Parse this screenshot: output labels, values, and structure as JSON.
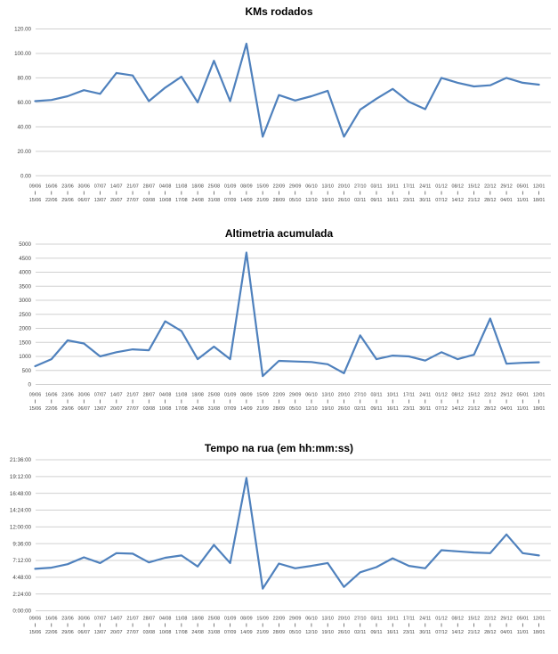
{
  "page": {
    "background": "#ffffff"
  },
  "chart_data": [
    {
      "type": "line",
      "title": "KMs rodados",
      "xlabel": "",
      "ylabel": "",
      "ylim": [
        0,
        120
      ],
      "grid": true,
      "legend": "none",
      "line_color": "#4F81BD",
      "y_ticks": [
        "0.00",
        "20.00",
        "40.00",
        "60.00",
        "80.00",
        "100.00",
        "120.00"
      ],
      "x_labels_top": [
        "09/06",
        "16/06",
        "23/06",
        "30/06",
        "07/07",
        "14/07",
        "21/07",
        "28/07",
        "04/08",
        "11/08",
        "18/08",
        "25/08",
        "01/09",
        "08/09",
        "15/09",
        "22/09",
        "29/09",
        "06/10",
        "13/10",
        "20/10",
        "27/10",
        "03/11",
        "10/11",
        "17/11",
        "24/11",
        "01/12",
        "08/12",
        "15/12",
        "22/12",
        "29/12",
        "05/01",
        "12/01"
      ],
      "x_labels_bottom": [
        "15/06",
        "22/06",
        "29/06",
        "06/07",
        "13/07",
        "20/07",
        "27/07",
        "03/08",
        "10/08",
        "17/08",
        "24/08",
        "31/08",
        "07/09",
        "14/09",
        "21/09",
        "28/09",
        "05/10",
        "12/10",
        "19/10",
        "26/10",
        "02/11",
        "09/11",
        "16/11",
        "23/11",
        "30/11",
        "07/12",
        "14/12",
        "21/12",
        "28/12",
        "04/01",
        "11/01",
        "18/01"
      ],
      "values": [
        61,
        62,
        65,
        70,
        67,
        84,
        82,
        61,
        72,
        81,
        60,
        94,
        61,
        108,
        32,
        66,
        61.5,
        65,
        69.5,
        32,
        54,
        63,
        71,
        60.5,
        54.5,
        80,
        76,
        73,
        74,
        80,
        76,
        74.5
      ]
    },
    {
      "type": "line",
      "title": "Altimetria acumulada",
      "xlabel": "",
      "ylabel": "",
      "ylim": [
        0,
        5000
      ],
      "grid": true,
      "legend": "none",
      "line_color": "#4F81BD",
      "y_ticks": [
        "0",
        "500",
        "1000",
        "1500",
        "2000",
        "2500",
        "3000",
        "3500",
        "4000",
        "4500",
        "5000"
      ],
      "x_labels_top": [
        "09/06",
        "16/06",
        "23/06",
        "30/06",
        "07/07",
        "14/07",
        "21/07",
        "28/07",
        "04/08",
        "11/08",
        "18/08",
        "25/08",
        "01/09",
        "08/09",
        "15/09",
        "22/09",
        "29/09",
        "06/10",
        "13/10",
        "20/10",
        "27/10",
        "03/11",
        "10/11",
        "17/11",
        "24/11",
        "01/12",
        "08/12",
        "15/12",
        "22/12",
        "29/12",
        "05/01",
        "12/01"
      ],
      "x_labels_bottom": [
        "15/06",
        "22/06",
        "29/06",
        "06/07",
        "13/07",
        "20/07",
        "27/07",
        "03/08",
        "10/08",
        "17/08",
        "24/08",
        "31/08",
        "07/09",
        "14/09",
        "21/09",
        "28/09",
        "05/10",
        "12/10",
        "19/10",
        "26/10",
        "02/11",
        "09/11",
        "16/11",
        "23/11",
        "30/11",
        "07/12",
        "14/12",
        "21/12",
        "28/12",
        "04/01",
        "11/01",
        "18/01"
      ],
      "values": [
        650,
        900,
        1570,
        1460,
        1000,
        1150,
        1250,
        1220,
        2250,
        1900,
        900,
        1350,
        900,
        4700,
        300,
        840,
        820,
        800,
        720,
        400,
        1750,
        900,
        1030,
        1000,
        850,
        1150,
        900,
        1060,
        2350,
        740,
        770,
        790
      ]
    },
    {
      "type": "line",
      "title": "Tempo na rua (em hh:mm:ss)",
      "xlabel": "",
      "ylabel": "",
      "ylim_hours": [
        0,
        21.6
      ],
      "grid": true,
      "legend": "none",
      "line_color": "#4F81BD",
      "y_ticks": [
        "0:00:00",
        "2:24:00",
        "4:48:00",
        "7:12:00",
        "9:36:00",
        "12:00:00",
        "14:24:00",
        "16:48:00",
        "19:12:00",
        "21:36:00"
      ],
      "x_labels_top": [
        "09/06",
        "16/06",
        "23/06",
        "30/06",
        "07/07",
        "14/07",
        "21/07",
        "28/07",
        "04/08",
        "11/08",
        "18/08",
        "25/08",
        "01/09",
        "08/09",
        "15/09",
        "22/09",
        "29/09",
        "06/10",
        "13/10",
        "20/10",
        "27/10",
        "03/11",
        "10/11",
        "17/11",
        "24/11",
        "01/12",
        "08/12",
        "15/12",
        "22/12",
        "29/12",
        "05/01",
        "12/01"
      ],
      "x_labels_bottom": [
        "15/06",
        "22/06",
        "29/06",
        "06/07",
        "13/07",
        "20/07",
        "27/07",
        "03/08",
        "10/08",
        "17/08",
        "24/08",
        "31/08",
        "07/09",
        "14/09",
        "21/09",
        "28/09",
        "05/10",
        "12/10",
        "19/10",
        "26/10",
        "02/11",
        "09/11",
        "16/11",
        "23/11",
        "30/11",
        "07/12",
        "14/12",
        "21/12",
        "28/12",
        "04/01",
        "11/01",
        "18/01"
      ],
      "values_hours": [
        6.0,
        6.17,
        6.67,
        7.65,
        6.83,
        8.25,
        8.17,
        6.92,
        7.58,
        7.92,
        6.33,
        9.42,
        6.83,
        19.0,
        3.17,
        6.75,
        6.08,
        6.42,
        6.83,
        3.42,
        5.5,
        6.25,
        7.5,
        6.42,
        6.08,
        8.67,
        8.5,
        8.33,
        8.25,
        10.92,
        8.25,
        7.92
      ]
    }
  ],
  "colors": {
    "series_line": "#4F81BD",
    "gridline": "#D0D0D0",
    "axis_label": "#444444",
    "tick_mark": "#595959",
    "title": "#000000"
  }
}
